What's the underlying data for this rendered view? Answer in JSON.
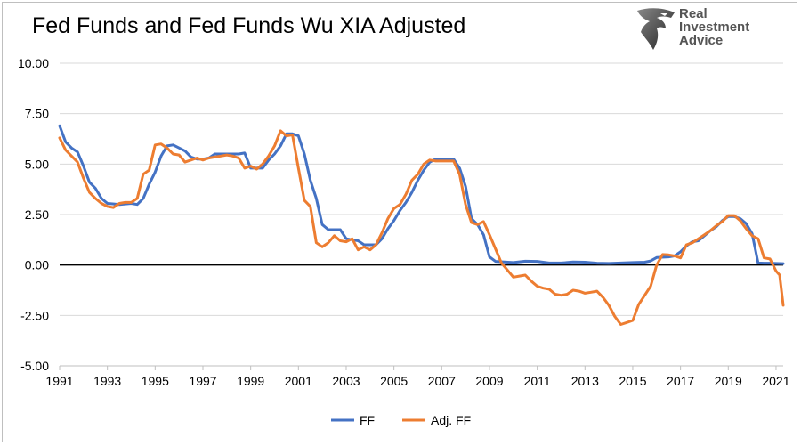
{
  "title": "Fed Funds and Fed Funds Wu XIA Adjusted",
  "logo": {
    "line1": "Real",
    "line2": "Investment",
    "line3": "Advice"
  },
  "chart_data": {
    "type": "line",
    "title": "Fed Funds and Fed Funds Wu XIA Adjusted",
    "xlabel": "",
    "ylabel": "",
    "xlim": [
      1991,
      2021.3
    ],
    "ylim": [
      -5,
      10
    ],
    "y_ticks": [
      10,
      7.5,
      5,
      2.5,
      0,
      -2.5,
      -5
    ],
    "y_tick_labels": [
      "10.00",
      "7.50",
      "5.00",
      "2.50",
      "0.00",
      "-2.50",
      "-5.00"
    ],
    "x_ticks": [
      1991,
      1993,
      1995,
      1997,
      1999,
      2001,
      2003,
      2005,
      2007,
      2009,
      2011,
      2013,
      2015,
      2017,
      2019,
      2021
    ],
    "x_tick_labels": [
      "1991",
      "1993",
      "1995",
      "1997",
      "1999",
      "2001",
      "2003",
      "2005",
      "2007",
      "2009",
      "2011",
      "2013",
      "2015",
      "2017",
      "2019",
      "2021"
    ],
    "grid": "horizontal",
    "zero_line": true,
    "legend_position": "bottom",
    "series": [
      {
        "name": "FF",
        "color": "#4472c4",
        "points": [
          [
            1991.0,
            6.9
          ],
          [
            1991.25,
            6.1
          ],
          [
            1991.5,
            5.8
          ],
          [
            1991.75,
            5.6
          ],
          [
            1992.0,
            4.9
          ],
          [
            1992.25,
            4.1
          ],
          [
            1992.5,
            3.8
          ],
          [
            1992.75,
            3.3
          ],
          [
            1993.0,
            3.05
          ],
          [
            1993.5,
            3.0
          ],
          [
            1994.0,
            3.05
          ],
          [
            1994.25,
            3.0
          ],
          [
            1994.5,
            3.3
          ],
          [
            1994.75,
            4.0
          ],
          [
            1995.0,
            4.6
          ],
          [
            1995.25,
            5.4
          ],
          [
            1995.5,
            5.9
          ],
          [
            1995.75,
            5.95
          ],
          [
            1996.0,
            5.8
          ],
          [
            1996.25,
            5.65
          ],
          [
            1996.5,
            5.35
          ],
          [
            1996.75,
            5.25
          ],
          [
            1997.0,
            5.25
          ],
          [
            1997.25,
            5.3
          ],
          [
            1997.5,
            5.5
          ],
          [
            1997.75,
            5.5
          ],
          [
            1998.0,
            5.5
          ],
          [
            1998.25,
            5.5
          ],
          [
            1998.5,
            5.5
          ],
          [
            1998.75,
            5.55
          ],
          [
            1999.0,
            4.8
          ],
          [
            1999.5,
            4.8
          ],
          [
            1999.75,
            5.2
          ],
          [
            2000.0,
            5.5
          ],
          [
            2000.25,
            5.9
          ],
          [
            2000.5,
            6.5
          ],
          [
            2000.75,
            6.5
          ],
          [
            2001.0,
            6.4
          ],
          [
            2001.25,
            5.5
          ],
          [
            2001.5,
            4.2
          ],
          [
            2001.75,
            3.3
          ],
          [
            2002.0,
            2.0
          ],
          [
            2002.25,
            1.75
          ],
          [
            2002.75,
            1.75
          ],
          [
            2003.0,
            1.3
          ],
          [
            2003.5,
            1.2
          ],
          [
            2003.75,
            1.0
          ],
          [
            2004.25,
            1.0
          ],
          [
            2004.5,
            1.3
          ],
          [
            2004.75,
            1.8
          ],
          [
            2005.0,
            2.2
          ],
          [
            2005.25,
            2.7
          ],
          [
            2005.5,
            3.1
          ],
          [
            2005.75,
            3.6
          ],
          [
            2006.0,
            4.2
          ],
          [
            2006.25,
            4.7
          ],
          [
            2006.5,
            5.1
          ],
          [
            2006.75,
            5.25
          ],
          [
            2007.0,
            5.25
          ],
          [
            2007.5,
            5.25
          ],
          [
            2007.75,
            4.8
          ],
          [
            2008.0,
            3.9
          ],
          [
            2008.25,
            2.3
          ],
          [
            2008.5,
            2.0
          ],
          [
            2008.75,
            1.5
          ],
          [
            2009.0,
            0.4
          ],
          [
            2009.25,
            0.18
          ],
          [
            2010.0,
            0.12
          ],
          [
            2010.5,
            0.19
          ],
          [
            2011.0,
            0.18
          ],
          [
            2011.5,
            0.1
          ],
          [
            2012.0,
            0.1
          ],
          [
            2012.5,
            0.15
          ],
          [
            2013.0,
            0.14
          ],
          [
            2013.5,
            0.09
          ],
          [
            2014.0,
            0.08
          ],
          [
            2014.5,
            0.1
          ],
          [
            2015.0,
            0.12
          ],
          [
            2015.5,
            0.14
          ],
          [
            2015.75,
            0.2
          ],
          [
            2016.0,
            0.37
          ],
          [
            2016.5,
            0.4
          ],
          [
            2016.75,
            0.45
          ],
          [
            2017.0,
            0.65
          ],
          [
            2017.25,
            0.95
          ],
          [
            2017.5,
            1.15
          ],
          [
            2017.75,
            1.2
          ],
          [
            2018.0,
            1.45
          ],
          [
            2018.25,
            1.7
          ],
          [
            2018.5,
            1.9
          ],
          [
            2018.75,
            2.2
          ],
          [
            2019.0,
            2.4
          ],
          [
            2019.25,
            2.4
          ],
          [
            2019.5,
            2.3
          ],
          [
            2019.75,
            2.05
          ],
          [
            2020.0,
            1.55
          ],
          [
            2020.25,
            0.1
          ],
          [
            2020.5,
            0.09
          ],
          [
            2020.75,
            0.09
          ],
          [
            2021.0,
            0.08
          ],
          [
            2021.3,
            0.07
          ]
        ]
      },
      {
        "name": "Adj. FF",
        "color": "#ed7d31",
        "points": [
          [
            1991.0,
            6.3
          ],
          [
            1991.25,
            5.7
          ],
          [
            1991.5,
            5.4
          ],
          [
            1991.75,
            5.1
          ],
          [
            1992.0,
            4.3
          ],
          [
            1992.25,
            3.6
          ],
          [
            1992.5,
            3.3
          ],
          [
            1992.75,
            3.05
          ],
          [
            1993.0,
            2.9
          ],
          [
            1993.25,
            2.85
          ],
          [
            1993.5,
            3.05
          ],
          [
            1993.75,
            3.1
          ],
          [
            1994.0,
            3.1
          ],
          [
            1994.25,
            3.3
          ],
          [
            1994.5,
            4.5
          ],
          [
            1994.75,
            4.7
          ],
          [
            1995.0,
            5.95
          ],
          [
            1995.25,
            6.0
          ],
          [
            1995.5,
            5.8
          ],
          [
            1995.75,
            5.5
          ],
          [
            1996.0,
            5.45
          ],
          [
            1996.25,
            5.1
          ],
          [
            1996.5,
            5.2
          ],
          [
            1996.75,
            5.3
          ],
          [
            1997.0,
            5.2
          ],
          [
            1997.25,
            5.3
          ],
          [
            1997.5,
            5.35
          ],
          [
            1997.75,
            5.4
          ],
          [
            1998.0,
            5.45
          ],
          [
            1998.25,
            5.4
          ],
          [
            1998.5,
            5.3
          ],
          [
            1998.75,
            4.8
          ],
          [
            1999.0,
            4.9
          ],
          [
            1999.25,
            4.75
          ],
          [
            1999.5,
            5.0
          ],
          [
            1999.75,
            5.4
          ],
          [
            2000.0,
            5.9
          ],
          [
            2000.25,
            6.65
          ],
          [
            2000.5,
            6.4
          ],
          [
            2000.75,
            6.45
          ],
          [
            2001.0,
            4.8
          ],
          [
            2001.25,
            3.2
          ],
          [
            2001.5,
            2.9
          ],
          [
            2001.75,
            1.1
          ],
          [
            2002.0,
            0.9
          ],
          [
            2002.25,
            1.1
          ],
          [
            2002.5,
            1.45
          ],
          [
            2002.75,
            1.2
          ],
          [
            2003.0,
            1.15
          ],
          [
            2003.25,
            1.3
          ],
          [
            2003.5,
            0.75
          ],
          [
            2003.75,
            0.9
          ],
          [
            2004.0,
            0.75
          ],
          [
            2004.25,
            1.0
          ],
          [
            2004.5,
            1.6
          ],
          [
            2004.75,
            2.3
          ],
          [
            2005.0,
            2.8
          ],
          [
            2005.25,
            3.0
          ],
          [
            2005.5,
            3.5
          ],
          [
            2005.75,
            4.2
          ],
          [
            2006.0,
            4.5
          ],
          [
            2006.25,
            5.0
          ],
          [
            2006.5,
            5.2
          ],
          [
            2006.75,
            5.15
          ],
          [
            2007.0,
            5.15
          ],
          [
            2007.5,
            5.15
          ],
          [
            2007.75,
            4.5
          ],
          [
            2008.0,
            3.0
          ],
          [
            2008.25,
            2.1
          ],
          [
            2008.5,
            2.0
          ],
          [
            2008.75,
            2.15
          ],
          [
            2009.0,
            1.5
          ],
          [
            2009.25,
            0.8
          ],
          [
            2009.5,
            0.1
          ],
          [
            2009.75,
            -0.25
          ],
          [
            2010.0,
            -0.6
          ],
          [
            2010.25,
            -0.55
          ],
          [
            2010.5,
            -0.5
          ],
          [
            2010.75,
            -0.8
          ],
          [
            2011.0,
            -1.05
          ],
          [
            2011.25,
            -1.15
          ],
          [
            2011.5,
            -1.2
          ],
          [
            2011.75,
            -1.45
          ],
          [
            2012.0,
            -1.5
          ],
          [
            2012.25,
            -1.45
          ],
          [
            2012.5,
            -1.25
          ],
          [
            2012.75,
            -1.3
          ],
          [
            2013.0,
            -1.4
          ],
          [
            2013.25,
            -1.35
          ],
          [
            2013.5,
            -1.3
          ],
          [
            2013.75,
            -1.6
          ],
          [
            2014.0,
            -2.0
          ],
          [
            2014.25,
            -2.55
          ],
          [
            2014.5,
            -2.95
          ],
          [
            2014.75,
            -2.85
          ],
          [
            2015.0,
            -2.75
          ],
          [
            2015.25,
            -1.95
          ],
          [
            2015.5,
            -1.5
          ],
          [
            2015.75,
            -1.05
          ],
          [
            2016.0,
            0.0
          ],
          [
            2016.25,
            0.52
          ],
          [
            2016.5,
            0.5
          ],
          [
            2016.75,
            0.45
          ],
          [
            2017.0,
            0.35
          ],
          [
            2017.25,
            1.0
          ],
          [
            2017.5,
            1.1
          ],
          [
            2017.75,
            1.3
          ],
          [
            2018.0,
            1.5
          ],
          [
            2018.25,
            1.7
          ],
          [
            2018.5,
            1.95
          ],
          [
            2018.75,
            2.15
          ],
          [
            2019.0,
            2.45
          ],
          [
            2019.25,
            2.45
          ],
          [
            2019.5,
            2.2
          ],
          [
            2019.75,
            1.8
          ],
          [
            2020.0,
            1.45
          ],
          [
            2020.25,
            1.3
          ],
          [
            2020.5,
            0.35
          ],
          [
            2020.75,
            0.3
          ],
          [
            2021.0,
            -0.3
          ],
          [
            2021.15,
            -0.5
          ],
          [
            2021.3,
            -2.0
          ]
        ]
      }
    ]
  }
}
